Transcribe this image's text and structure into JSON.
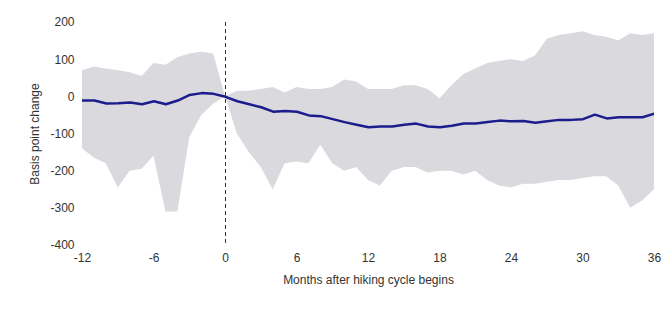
{
  "chart_data": {
    "type": "line",
    "x_label": "Months after hiking cycle begins",
    "y_label": "Basis point change",
    "x": [
      -12,
      -11,
      -10,
      -9,
      -8,
      -7,
      -6,
      -5,
      -4,
      -3,
      -2,
      -1,
      0,
      1,
      2,
      3,
      4,
      5,
      6,
      7,
      8,
      9,
      10,
      11,
      12,
      13,
      14,
      15,
      16,
      17,
      18,
      19,
      20,
      21,
      22,
      23,
      24,
      25,
      26,
      27,
      28,
      29,
      30,
      31,
      32,
      33,
      34,
      35,
      36
    ],
    "series": [
      {
        "type": "area",
        "color": "#d9d9de",
        "lower": [
          -140,
          -165,
          -180,
          -245,
          -200,
          -195,
          -160,
          -310,
          -310,
          -110,
          -50,
          -20,
          0,
          -100,
          -150,
          -190,
          -250,
          -180,
          -175,
          -180,
          -130,
          -180,
          -200,
          -190,
          -225,
          -240,
          -200,
          -190,
          -190,
          -205,
          -200,
          -200,
          -210,
          -200,
          -225,
          -240,
          -245,
          -235,
          -235,
          -230,
          -225,
          -225,
          -220,
          -215,
          -215,
          -240,
          -300,
          -280,
          -250
        ],
        "upper": [
          70,
          80,
          75,
          70,
          65,
          55,
          90,
          85,
          105,
          115,
          120,
          115,
          0,
          15,
          15,
          20,
          25,
          10,
          25,
          20,
          20,
          25,
          45,
          40,
          20,
          20,
          20,
          30,
          30,
          20,
          -5,
          30,
          60,
          75,
          90,
          95,
          100,
          95,
          110,
          155,
          165,
          170,
          175,
          165,
          160,
          150,
          170,
          165,
          170
        ]
      },
      {
        "type": "line",
        "color": "#1c1c8c",
        "values": [
          -10,
          -10,
          -18,
          -17,
          -15,
          -20,
          -12,
          -20,
          -10,
          5,
          10,
          8,
          0,
          -12,
          -20,
          -28,
          -40,
          -38,
          -40,
          -50,
          -52,
          -60,
          -68,
          -75,
          -82,
          -80,
          -80,
          -75,
          -72,
          -80,
          -82,
          -78,
          -72,
          -72,
          -68,
          -64,
          -66,
          -65,
          -70,
          -66,
          -62,
          -62,
          -60,
          -48,
          -58,
          -55,
          -55,
          -55,
          -45
        ]
      }
    ],
    "annotations": [
      {
        "type": "rule",
        "x": 0,
        "line_style": "dashed"
      }
    ],
    "xlim": [
      -12,
      36
    ],
    "xticks": [
      -12,
      -6,
      0,
      6,
      12,
      18,
      24,
      30,
      36
    ],
    "ylim": [
      -400,
      200
    ],
    "yticks": [
      -400,
      -300,
      -200,
      -100,
      0,
      100,
      200
    ],
    "grid": false
  }
}
